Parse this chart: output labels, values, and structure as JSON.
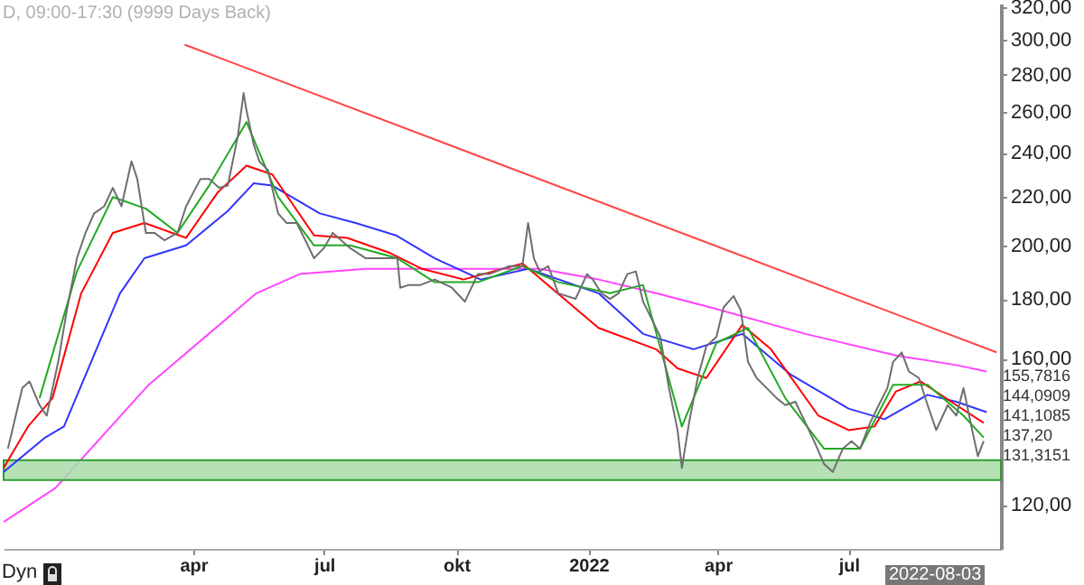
{
  "chart_data": {
    "type": "line",
    "title": "D, 09:00-17:30 (9999 Days Back)",
    "xlim": [
      "2020-11-20",
      "2022-10-15"
    ],
    "xticks": [
      {
        "value": "2021-04-01",
        "label": "apr"
      },
      {
        "value": "2021-07-01",
        "label": "jul"
      },
      {
        "value": "2021-10-01",
        "label": "okt"
      },
      {
        "value": "2022-01-01",
        "label": "2022"
      },
      {
        "value": "2022-04-01",
        "label": "apr"
      },
      {
        "value": "2022-07-01",
        "label": "jul"
      }
    ],
    "ylim": [
      110,
      322
    ],
    "log": "y",
    "yticks": [
      {
        "value": 120,
        "label": "120,00"
      },
      {
        "value": 160,
        "label": "160,00"
      },
      {
        "value": 180,
        "label": "180,00"
      },
      {
        "value": 200,
        "label": "200,00"
      },
      {
        "value": 220,
        "label": "220,00"
      },
      {
        "value": 240,
        "label": "240,00"
      },
      {
        "value": 260,
        "label": "260,00"
      },
      {
        "value": 280,
        "label": "280,00"
      },
      {
        "value": 300,
        "label": "300,00"
      },
      {
        "value": 320,
        "label": "320,00"
      }
    ],
    "grid": false,
    "marker": "none",
    "line_style": "solid",
    "series": [
      {
        "color": "#ff44ff",
        "x": [
          "2020-11-20",
          "2020-12-26",
          "2021-03-01",
          "2021-05-15",
          "2021-06-14",
          "2021-07-30",
          "2021-09-07",
          "2021-10-18",
          "2021-11-28",
          "2022-01-08",
          "2022-02-17",
          "2022-03-27",
          "2022-06-01",
          "2022-08-03",
          "2022-09-14",
          "2022-10-05"
        ],
        "values": [
          116,
          124,
          152,
          182,
          189,
          191,
          191,
          191,
          191,
          187,
          182,
          177,
          168,
          161,
          158,
          156
        ]
      },
      {
        "color": "#3333ff",
        "x": [
          "2020-11-20",
          "2020-12-19",
          "2021-01-01",
          "2021-02-09",
          "2021-02-26",
          "2021-03-27",
          "2021-04-25",
          "2021-05-13",
          "2021-05-26",
          "2021-06-28",
          "2021-07-23",
          "2021-08-20",
          "2021-09-16",
          "2021-10-18",
          "2021-11-20",
          "2022-01-08",
          "2022-02-08",
          "2022-03-15",
          "2022-04-18",
          "2022-05-22",
          "2022-07-01",
          "2022-07-26",
          "2022-08-25",
          "2022-09-14",
          "2022-10-05"
        ],
        "values": [
          128,
          137,
          140,
          182,
          195,
          200,
          214,
          226,
          225,
          213,
          209,
          204,
          195,
          187,
          191,
          182,
          168,
          163,
          168,
          155,
          145,
          142,
          149,
          147,
          144
        ]
      },
      {
        "color": "#ff0000",
        "x": [
          "2020-11-20",
          "2020-12-07",
          "2020-12-24",
          "2021-01-13",
          "2021-02-04",
          "2021-02-26",
          "2021-03-27",
          "2021-04-18",
          "2021-05-08",
          "2021-05-26",
          "2021-06-24",
          "2021-07-17",
          "2021-08-16",
          "2021-09-07",
          "2021-10-06",
          "2021-11-16",
          "2022-01-08",
          "2022-02-17",
          "2022-03-04",
          "2022-03-24",
          "2022-04-18",
          "2022-05-08",
          "2022-06-10",
          "2022-07-01",
          "2022-07-19",
          "2022-08-03",
          "2022-08-20",
          "2022-09-14",
          "2022-10-03"
        ],
        "values": [
          129,
          140,
          148,
          182,
          205,
          209,
          203,
          222,
          234,
          230,
          204,
          203,
          197,
          191,
          187,
          193,
          170,
          163,
          157,
          154,
          171,
          163,
          143,
          139,
          140,
          150,
          153,
          146,
          141
        ]
      },
      {
        "color": "#22aa22",
        "x": [
          "2020-12-15",
          "2021-01-10",
          "2021-02-04",
          "2021-02-27",
          "2021-03-21",
          "2021-04-12",
          "2021-05-08",
          "2021-05-30",
          "2021-06-24",
          "2021-07-19",
          "2021-08-21",
          "2021-09-16",
          "2021-10-16",
          "2021-11-16",
          "2021-12-11",
          "2022-01-16",
          "2022-02-08",
          "2022-03-07",
          "2022-03-31",
          "2022-04-22",
          "2022-05-18",
          "2022-06-14",
          "2022-07-09",
          "2022-08-01",
          "2022-08-25",
          "2022-09-19",
          "2022-10-03"
        ],
        "values": [
          148,
          190,
          220,
          215,
          205,
          225,
          255,
          220,
          200,
          200,
          195,
          186,
          186,
          192,
          186,
          182,
          185,
          140,
          165,
          170,
          148,
          134,
          134,
          152,
          152,
          143,
          137
        ]
      },
      {
        "color": "#6e6e6e",
        "x": [
          "2020-11-23",
          "2020-12-03",
          "2020-12-08",
          "2020-12-15",
          "2020-12-20",
          "2020-12-28",
          "2021-01-03",
          "2021-01-10",
          "2021-01-16",
          "2021-01-22",
          "2021-01-29",
          "2021-02-04",
          "2021-02-10",
          "2021-02-17",
          "2021-02-21",
          "2021-02-27",
          "2021-03-05",
          "2021-03-12",
          "2021-03-21",
          "2021-03-27",
          "2021-04-06",
          "2021-04-12",
          "2021-04-19",
          "2021-04-25",
          "2021-05-02",
          "2021-05-06",
          "2021-05-08",
          "2021-05-13",
          "2021-05-17",
          "2021-05-23",
          "2021-05-30",
          "2021-06-05",
          "2021-06-12",
          "2021-06-18",
          "2021-06-24",
          "2021-07-01",
          "2021-07-07",
          "2021-07-13",
          "2021-07-19",
          "2021-07-30",
          "2021-08-11",
          "2021-08-21",
          "2021-08-23",
          "2021-08-29",
          "2021-09-06",
          "2021-09-16",
          "2021-09-28",
          "2021-10-07",
          "2021-10-16",
          "2021-10-24",
          "2021-11-07",
          "2021-11-16",
          "2021-11-20",
          "2021-11-24",
          "2021-11-28",
          "2021-12-04",
          "2021-12-11",
          "2021-12-23",
          "2021-12-31",
          "2022-01-04",
          "2022-01-10",
          "2022-01-16",
          "2022-01-22",
          "2022-01-28",
          "2022-02-03",
          "2022-02-08",
          "2022-02-14",
          "2022-02-20",
          "2022-02-26",
          "2022-03-04",
          "2022-03-07",
          "2022-03-12",
          "2022-03-18",
          "2022-03-24",
          "2022-03-31",
          "2022-04-05",
          "2022-04-12",
          "2022-04-17",
          "2022-04-22",
          "2022-04-28",
          "2022-05-05",
          "2022-05-12",
          "2022-05-18",
          "2022-05-25",
          "2022-06-01",
          "2022-06-07",
          "2022-06-14",
          "2022-06-20",
          "2022-06-27",
          "2022-07-03",
          "2022-07-09",
          "2022-07-16",
          "2022-07-22",
          "2022-07-28",
          "2022-08-01",
          "2022-08-07",
          "2022-08-12",
          "2022-08-19",
          "2022-08-25",
          "2022-08-31",
          "2022-09-08",
          "2022-09-14",
          "2022-09-19",
          "2022-09-25",
          "2022-09-29",
          "2022-10-03"
        ],
        "values": [
          134,
          151,
          153,
          146,
          143,
          159,
          176,
          195,
          205,
          213,
          216,
          224,
          216,
          236,
          228,
          205,
          205,
          202,
          205,
          216,
          228,
          228,
          224,
          225,
          248,
          270,
          261,
          244,
          236,
          232,
          213,
          209,
          209,
          202,
          195,
          199,
          205,
          202,
          199,
          195,
          195,
          195,
          184,
          185,
          185,
          187,
          184,
          179,
          189,
          189,
          192,
          192,
          209,
          195,
          190,
          192,
          182,
          180,
          189,
          187,
          182,
          180,
          182,
          189,
          190,
          179,
          173,
          167,
          151,
          139,
          129,
          141,
          154,
          164,
          167,
          177,
          181,
          176,
          159,
          154,
          151,
          148,
          146,
          147,
          141,
          136,
          130,
          128,
          134,
          136,
          134,
          141,
          146,
          151,
          159,
          162,
          156,
          154,
          146,
          139,
          146,
          143,
          151,
          139,
          132,
          136
        ]
      },
      {
        "color": "#ff4444",
        "x": [
          "2021-03-26",
          "2022-10-12"
        ],
        "values": [
          297,
          162
        ]
      }
    ],
    "bands": [
      {
        "axis": "y",
        "from": 126,
        "to": 131,
        "color": "#a8dca8"
      }
    ],
    "annotations": [
      "155,7816",
      "144,0909",
      "141,1085",
      "137,20",
      "131,3151",
      "2022-08-03",
      "Dyn"
    ]
  }
}
